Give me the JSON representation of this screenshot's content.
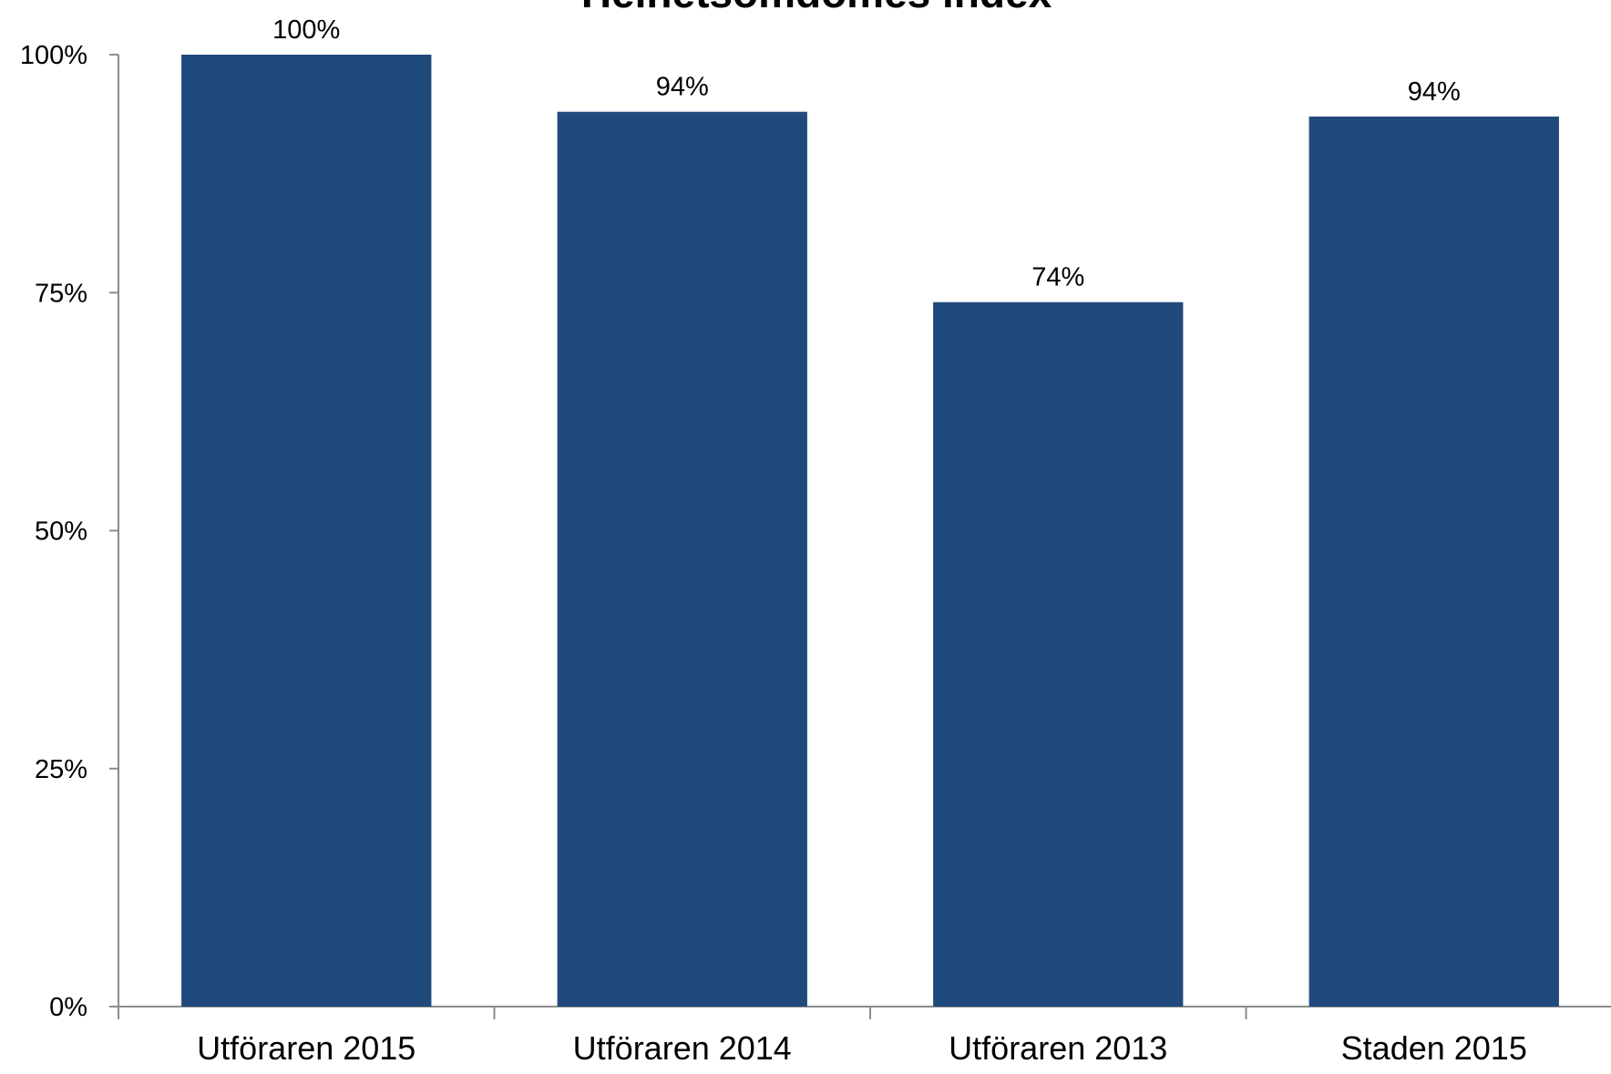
{
  "chart_data": {
    "type": "bar",
    "title": "Helhetsomdömes index",
    "xlabel": "",
    "ylabel": "",
    "categories": [
      "Utföraren 2015",
      "Utföraren 2014",
      "Utföraren 2013",
      "Staden 2015"
    ],
    "values": [
      100,
      94,
      74,
      93.5
    ],
    "data_labels": [
      "100%",
      "94%",
      "74%",
      "94%"
    ],
    "ylim": [
      0,
      100
    ],
    "yticks": [
      0,
      25,
      50,
      75,
      100
    ],
    "ytick_labels": [
      "0%",
      "25%",
      "50%",
      "75%",
      "100%"
    ],
    "grid": false,
    "legend": "none",
    "bar_color": "#214A7C",
    "axis_color": "#8C8C8C"
  }
}
